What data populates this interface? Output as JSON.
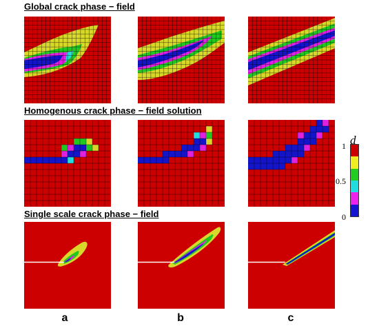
{
  "titles": {
    "global": "Global crack phase − field",
    "homogenous": "Homogenous crack phase − field solution",
    "single": "Single scale crack phase − field"
  },
  "columns": [
    "a",
    "b",
    "c"
  ],
  "legend": {
    "symbol": "d",
    "ticks": [
      "1",
      "0.5",
      "0"
    ],
    "colors": [
      "#cc0000",
      "#eeee22",
      "#22cc22",
      "#22dddd",
      "#ee22ee",
      "#1414d2"
    ]
  },
  "colors": {
    "red": "#cc0000",
    "yellow": "#d8d82a",
    "green": "#22c822",
    "cyan": "#22dede",
    "magenta": "#e022e0",
    "blue": "#1414c8",
    "mesh": "#000000",
    "crack_line": "#ffffff"
  }
}
